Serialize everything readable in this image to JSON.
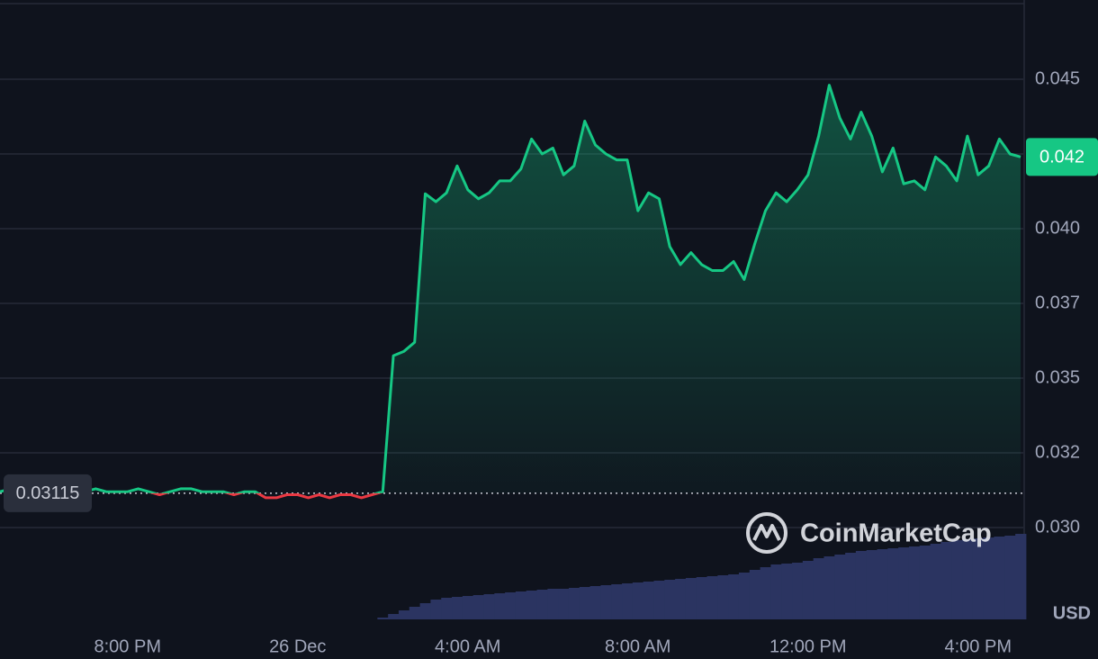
{
  "chart_data": {
    "type": "line",
    "categories": [
      null,
      null,
      null,
      null,
      null,
      null,
      null,
      null,
      null,
      null,
      null,
      null,
      "8:00 PM",
      null,
      null,
      null,
      null,
      null,
      null,
      null,
      null,
      null,
      null,
      null,
      null,
      null,
      null,
      null,
      "26 Dec",
      null,
      null,
      null,
      null,
      null,
      null,
      null,
      null,
      null,
      null,
      null,
      null,
      null,
      null,
      null,
      "4:00 AM",
      null,
      null,
      null,
      null,
      null,
      null,
      null,
      null,
      null,
      null,
      null,
      null,
      null,
      null,
      null,
      "8:00 AM",
      null,
      null,
      null,
      null,
      null,
      null,
      null,
      null,
      null,
      null,
      null,
      null,
      null,
      null,
      null,
      "12:00 PM",
      null,
      null,
      null,
      null,
      null,
      null,
      null,
      null,
      null,
      null,
      null,
      null,
      null,
      null,
      null,
      "4:00 PM",
      null,
      null,
      null,
      null
    ],
    "values": [
      0.0312,
      0.0313,
      0.0312,
      0.0313,
      0.0312,
      0.0312,
      0.0311,
      0.0312,
      0.0312,
      0.0313,
      0.0312,
      0.0312,
      0.0312,
      0.0313,
      0.0312,
      0.0311,
      0.0312,
      0.0313,
      0.0313,
      0.0312,
      0.0312,
      0.0312,
      0.0311,
      0.0312,
      0.0312,
      0.031,
      0.031,
      0.0311,
      0.0311,
      0.031,
      0.0311,
      0.031,
      0.0311,
      0.0311,
      0.031,
      0.0311,
      0.0312,
      0.03575,
      0.0359,
      0.0362,
      0.04117,
      0.0409,
      0.0412,
      0.0421,
      0.0413,
      0.041,
      0.0412,
      0.0416,
      0.0416,
      0.042,
      0.043,
      0.0425,
      0.0427,
      0.0418,
      0.0421,
      0.0436,
      0.0428,
      0.0425,
      0.0423,
      0.0423,
      0.0406,
      0.0412,
      0.041,
      0.0394,
      0.0388,
      0.0392,
      0.0388,
      0.0386,
      0.0386,
      0.0389,
      0.0383,
      0.0395,
      0.0406,
      0.0412,
      0.0409,
      0.0413,
      0.0418,
      0.0431,
      0.0448,
      0.0437,
      0.043,
      0.0439,
      0.0431,
      0.0419,
      0.0427,
      0.0415,
      0.0416,
      0.0413,
      0.0424,
      0.0421,
      0.0416,
      0.0431,
      0.0418,
      0.0421,
      0.043,
      0.0425,
      0.0424
    ],
    "volume": [
      null,
      null,
      null,
      null,
      null,
      null,
      null,
      null,
      null,
      null,
      null,
      null,
      null,
      null,
      null,
      null,
      null,
      null,
      null,
      null,
      null,
      null,
      null,
      null,
      null,
      null,
      null,
      null,
      null,
      null,
      null,
      null,
      null,
      null,
      null,
      null,
      2,
      6,
      10,
      14,
      18,
      22,
      24,
      25,
      26,
      27,
      28,
      29,
      30,
      31,
      32,
      33,
      34,
      34,
      35,
      36,
      37,
      38,
      39,
      40,
      41,
      42,
      43,
      44,
      45,
      46,
      47,
      48,
      49,
      50,
      52,
      55,
      58,
      61,
      62,
      63,
      65,
      68,
      70,
      72,
      74,
      76,
      77,
      78,
      79,
      80,
      81,
      82,
      84,
      86,
      88,
      89,
      90,
      91,
      92,
      93,
      95
    ],
    "baseline": 0.03115,
    "price_label": "0.042",
    "up_color": "#16c784",
    "down_color": "#ea3943",
    "volume_color": "#2b3461",
    "ylim": [
      0.02693,
      0.04765
    ],
    "yticks": [
      {
        "value": 0.03,
        "label": "0.030"
      },
      {
        "value": 0.0325,
        "label": "0.032"
      },
      0.035,
      {
        "value": 0.0375,
        "label": "0.037"
      },
      {
        "value": 0.04,
        "label": "0.040"
      },
      {
        "value": 0.0425,
        "label": "0.042"
      },
      0.045
    ],
    "grid": true,
    "currency": "USD",
    "watermark": "CoinMarketCap"
  }
}
